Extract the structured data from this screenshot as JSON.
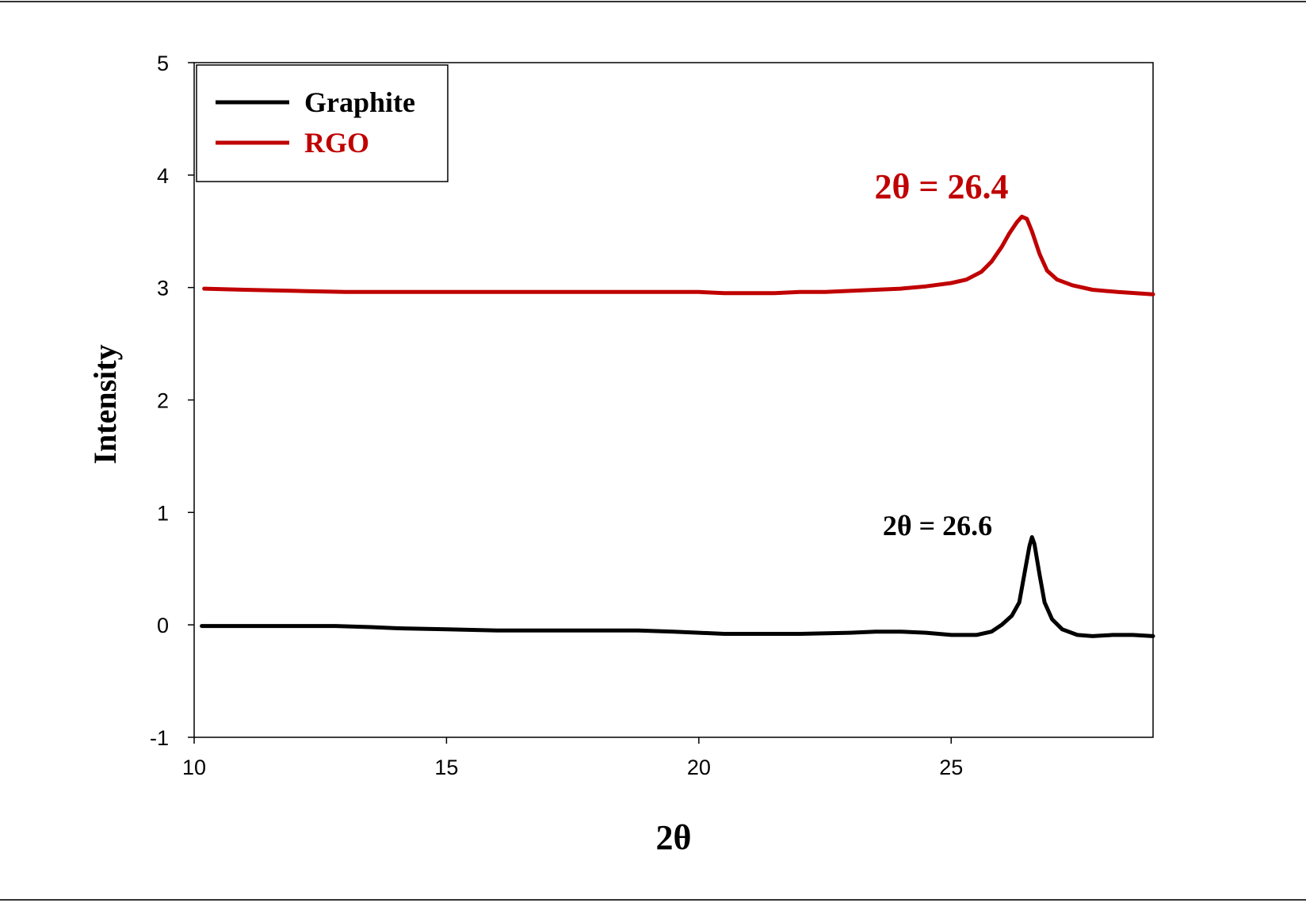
{
  "chart_data": {
    "type": "line",
    "xlabel": "2θ",
    "ylabel": "Intensity",
    "xlim": [
      10,
      29
    ],
    "ylim": [
      -1,
      5
    ],
    "x_ticks": [
      10,
      15,
      20,
      25
    ],
    "x_tick_labels": [
      "10",
      "15",
      "20",
      "25"
    ],
    "y_ticks": [
      -1,
      0,
      1,
      2,
      3,
      4,
      5
    ],
    "y_tick_labels": [
      "-1",
      "0",
      "1",
      "2",
      "3",
      "4",
      "5"
    ],
    "grid": false,
    "legend_position": "top-left",
    "series": [
      {
        "name": "Graphite",
        "color": "#000000",
        "x": [
          10.15,
          11,
          12,
          12.8,
          13.5,
          14,
          15,
          16,
          17,
          18,
          18.8,
          19.5,
          20,
          20.5,
          21,
          22,
          23,
          23.5,
          24,
          24.5,
          25,
          25.5,
          25.8,
          26.0,
          26.2,
          26.35,
          26.45,
          26.55,
          26.6,
          26.65,
          26.75,
          26.85,
          27.0,
          27.2,
          27.5,
          27.8,
          28.2,
          28.6,
          29
        ],
        "y": [
          -0.01,
          -0.01,
          -0.01,
          -0.01,
          -0.02,
          -0.03,
          -0.04,
          -0.05,
          -0.05,
          -0.05,
          -0.05,
          -0.06,
          -0.07,
          -0.08,
          -0.08,
          -0.08,
          -0.07,
          -0.06,
          -0.06,
          -0.07,
          -0.09,
          -0.09,
          -0.06,
          0.0,
          0.08,
          0.2,
          0.45,
          0.7,
          0.78,
          0.72,
          0.45,
          0.2,
          0.05,
          -0.04,
          -0.09,
          -0.1,
          -0.09,
          -0.09,
          -0.1
        ]
      },
      {
        "name": "RGO",
        "color": "#c00000",
        "x": [
          10.2,
          11,
          12,
          13,
          14,
          15,
          16,
          17,
          18,
          19,
          20,
          20.5,
          21,
          21.5,
          22,
          22.5,
          23,
          23.5,
          24,
          24.5,
          25,
          25.3,
          25.6,
          25.8,
          26.0,
          26.15,
          26.3,
          26.4,
          26.5,
          26.6,
          26.75,
          26.9,
          27.1,
          27.4,
          27.8,
          28.3,
          29
        ],
        "y": [
          2.99,
          2.98,
          2.97,
          2.96,
          2.96,
          2.96,
          2.96,
          2.96,
          2.96,
          2.96,
          2.96,
          2.95,
          2.95,
          2.95,
          2.96,
          2.96,
          2.97,
          2.98,
          2.99,
          3.01,
          3.04,
          3.07,
          3.14,
          3.23,
          3.36,
          3.48,
          3.58,
          3.63,
          3.61,
          3.5,
          3.3,
          3.15,
          3.07,
          3.02,
          2.98,
          2.96,
          2.94
        ]
      }
    ],
    "annotations": [
      {
        "text": "2θ = 26.4",
        "color": "#c00000",
        "series": "RGO"
      },
      {
        "text": "2θ = 26.6",
        "color": "#000000",
        "series": "Graphite"
      }
    ]
  }
}
